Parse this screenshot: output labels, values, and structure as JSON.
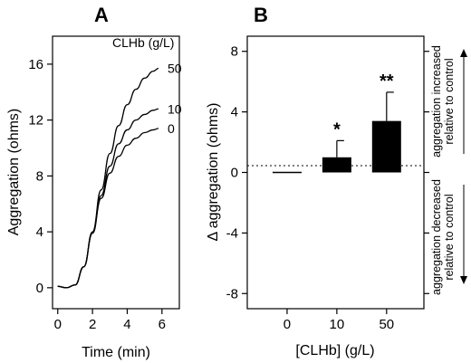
{
  "chart_data": [
    {
      "type": "line",
      "panel_label": "A",
      "xlabel": "Time (min)",
      "ylabel": "Aggregation (ohms)",
      "xlim": [
        -0.3,
        7
      ],
      "ylim": [
        -1.5,
        18
      ],
      "xticks": [
        0,
        2,
        4,
        6
      ],
      "yticks": [
        0,
        4,
        8,
        12,
        16
      ],
      "legend_title": "CLHb (g/L)",
      "grid": false,
      "series": [
        {
          "name": "50",
          "x": [
            0,
            0.5,
            1,
            1.5,
            2,
            2.5,
            3,
            3.5,
            4,
            4.5,
            5,
            5.5,
            5.8
          ],
          "y": [
            0.1,
            0,
            0.2,
            1.5,
            4.0,
            7.0,
            9.6,
            11.6,
            13.1,
            14.2,
            15.0,
            15.5,
            15.7
          ]
        },
        {
          "name": "10",
          "x": [
            0,
            0.5,
            1,
            1.5,
            2,
            2.5,
            3,
            3.5,
            4,
            4.5,
            5,
            5.5,
            5.8
          ],
          "y": [
            0.1,
            0,
            0.2,
            1.5,
            3.9,
            6.6,
            8.7,
            10.3,
            11.3,
            12.0,
            12.4,
            12.7,
            12.8
          ]
        },
        {
          "name": "0",
          "x": [
            0,
            0.5,
            1,
            1.5,
            2,
            2.5,
            3,
            3.5,
            4,
            4.5,
            5,
            5.5,
            5.8
          ],
          "y": [
            0.1,
            0,
            0.2,
            1.5,
            3.9,
            6.4,
            8.2,
            9.4,
            10.2,
            10.7,
            11.1,
            11.3,
            11.4
          ]
        }
      ]
    },
    {
      "type": "bar",
      "panel_label": "B",
      "xlabel": "[CLHb] (g/L)",
      "ylabel": "Δ aggregation (ohms)",
      "categories": [
        "0",
        "10",
        "50"
      ],
      "values": [
        0,
        1.0,
        3.4
      ],
      "errors": [
        0,
        1.1,
        1.9
      ],
      "significance": [
        "",
        "*",
        "**"
      ],
      "ylim": [
        -9,
        9
      ],
      "yticks": [
        8,
        4,
        0,
        -4,
        -8
      ],
      "grid": false,
      "annotations": {
        "top_line1": "aggregation increased",
        "top_line2": "relative to control",
        "bottom_line1": "aggregation decreased",
        "bottom_line2": "relative to control"
      }
    }
  ]
}
